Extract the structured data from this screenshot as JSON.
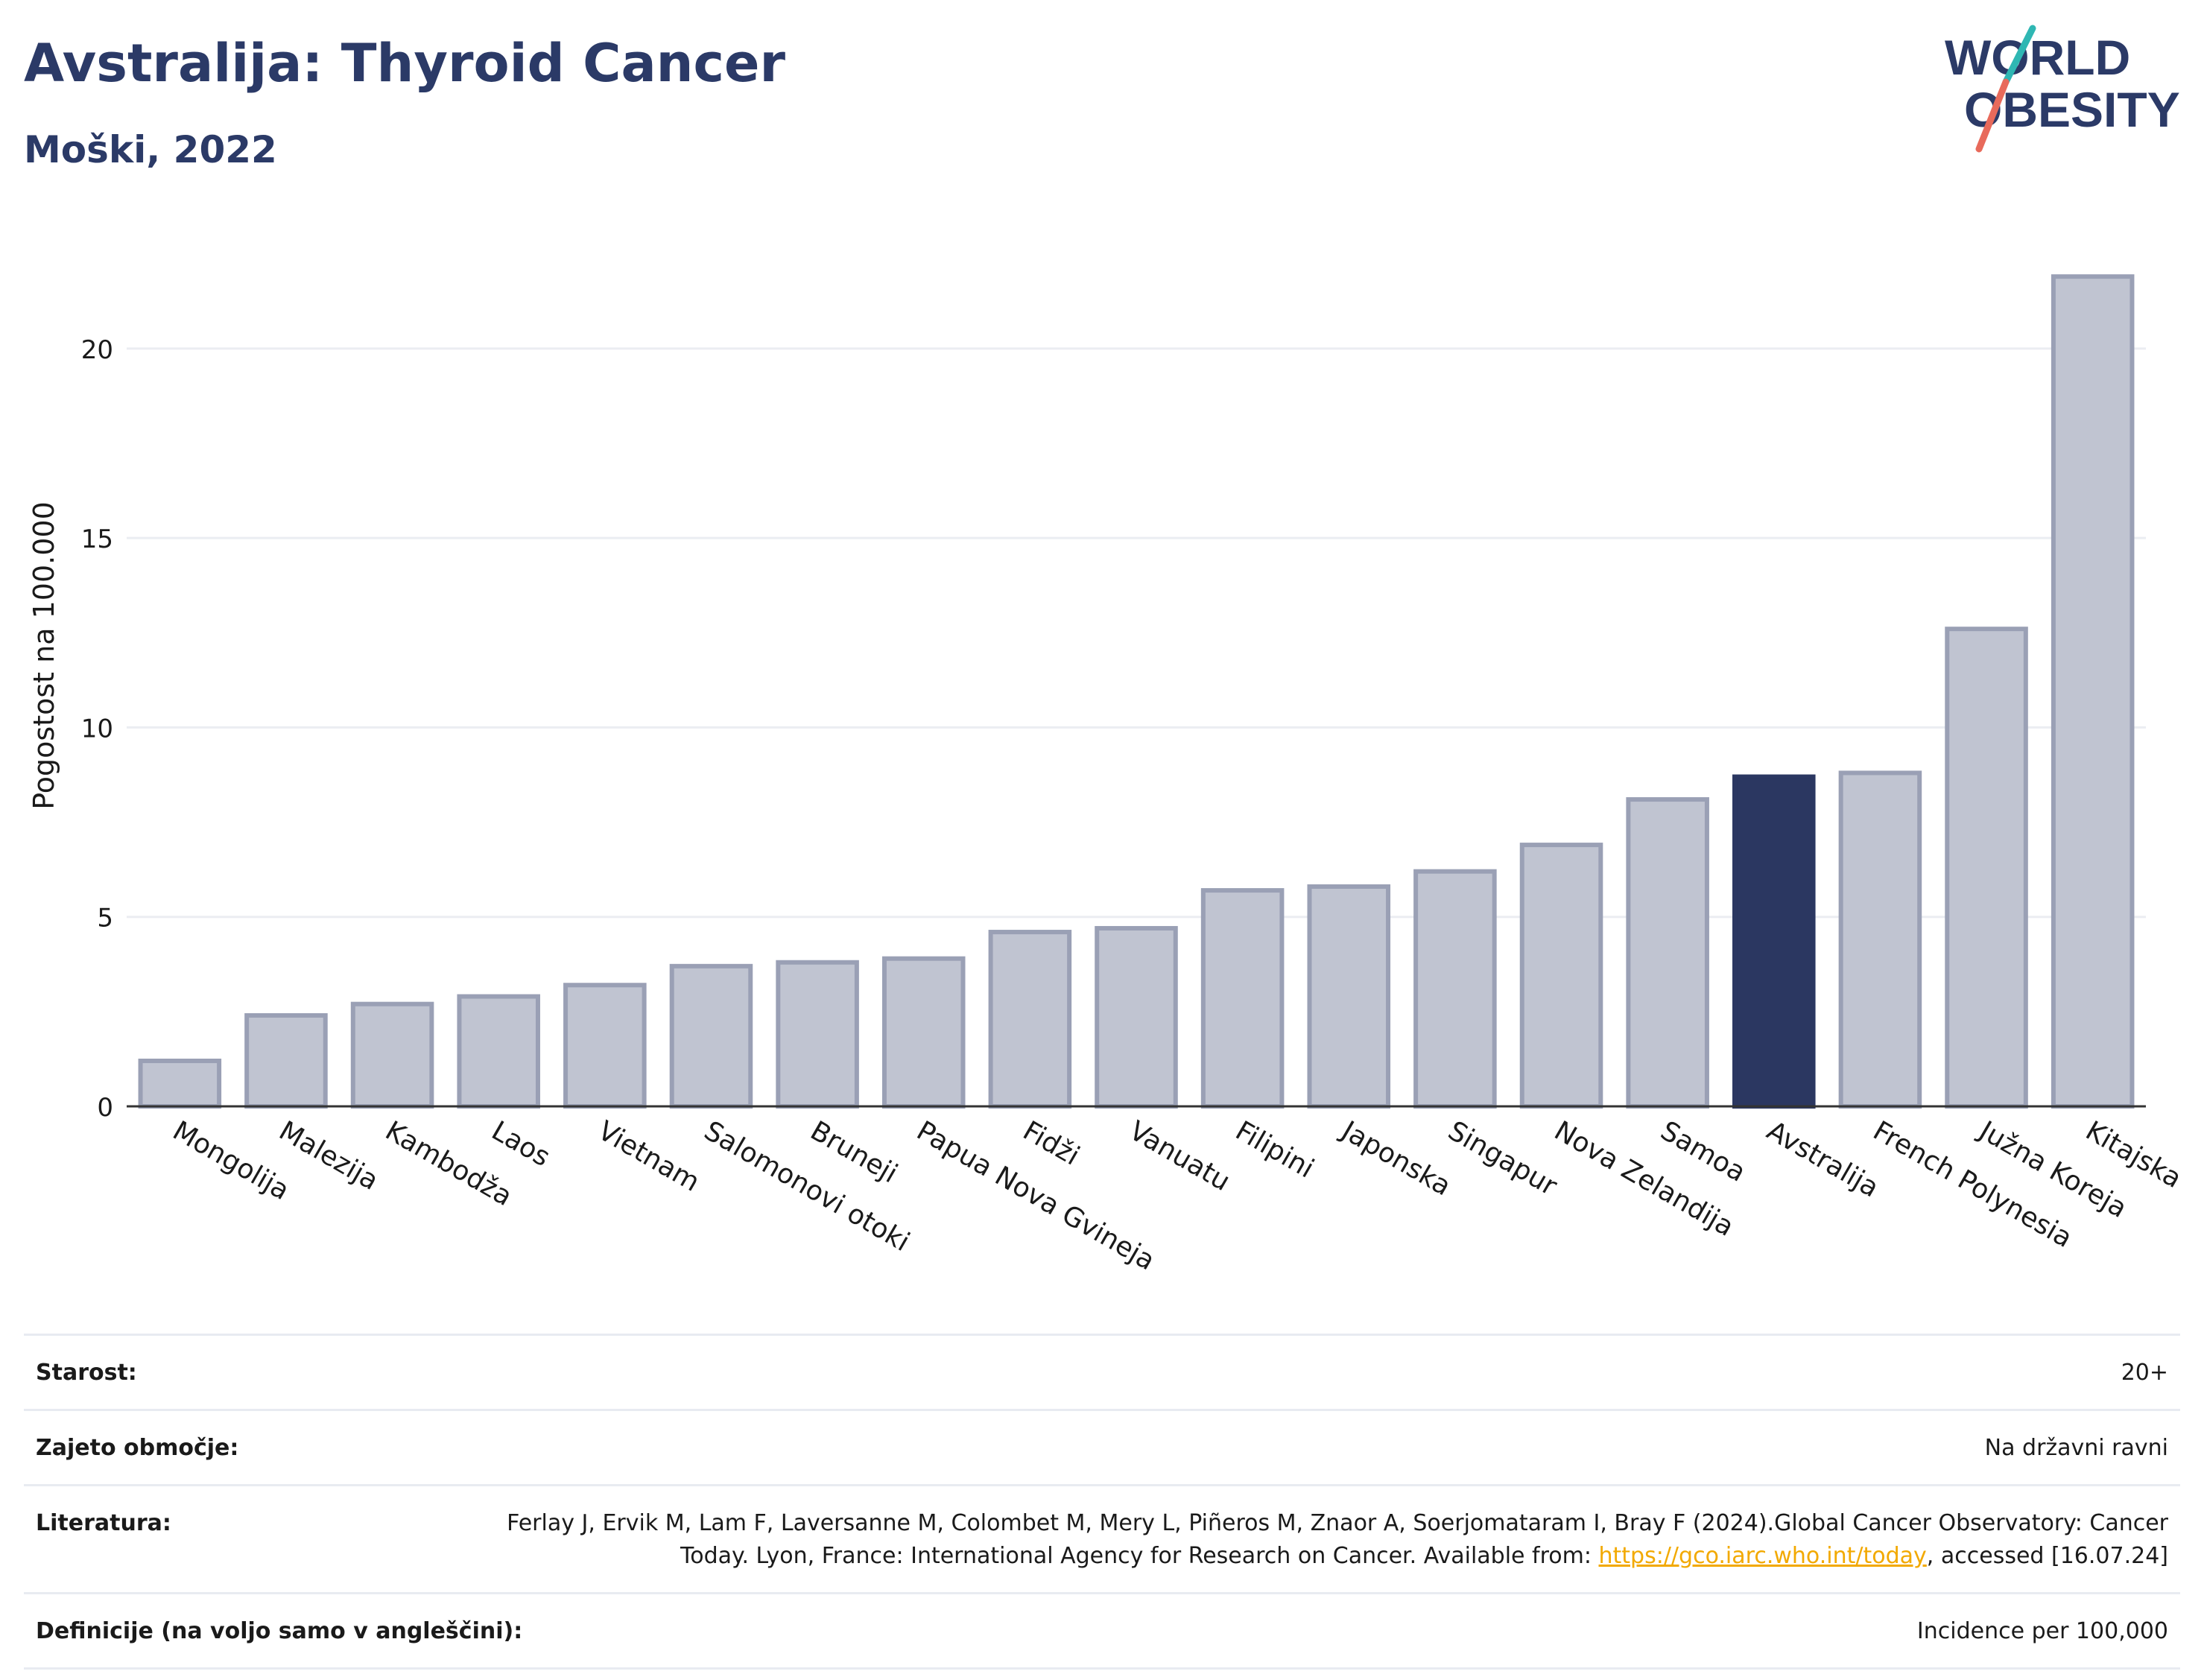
{
  "header": {
    "title": "Avstralija: Thyroid Cancer",
    "subtitle": "Moški, 2022"
  },
  "logo": {
    "line1": "WORLD",
    "line2": "OBESITY"
  },
  "chart_data": {
    "type": "bar",
    "categories": [
      "Mongolija",
      "Malezija",
      "Kambodža",
      "Laos",
      "Vietnam",
      "Salomonovi otoki",
      "Bruneji",
      "Papua Nova Gvineja",
      "Fidži",
      "Vanuatu",
      "Filipini",
      "Japonska",
      "Singapur",
      "Nova Zelandija",
      "Samoa",
      "Avstralija",
      "French Polynesia",
      "Južna Koreja",
      "Kitajska"
    ],
    "values": [
      1.2,
      2.4,
      2.7,
      2.9,
      3.2,
      3.7,
      3.8,
      3.9,
      4.6,
      4.7,
      5.7,
      5.8,
      6.2,
      6.9,
      8.1,
      8.7,
      8.8,
      12.6,
      21.9
    ],
    "highlight": "Avstralija",
    "ylabel": "Pogostost na 100.000",
    "xlabel": "",
    "ylim": [
      0,
      23.3
    ],
    "yticks": [
      0,
      5,
      10,
      15,
      20
    ],
    "grid": true,
    "colors": {
      "bar": "#c0c4d1",
      "bar_border": "#9aa0b5",
      "highlight": "#2b3761",
      "grid": "#ebedf2",
      "axis": "#333333"
    }
  },
  "info": {
    "rows": [
      {
        "label": "Starost:",
        "value": "20+"
      },
      {
        "label": "Zajeto območje:",
        "value": "Na državni ravni"
      },
      {
        "label": "Literatura:",
        "value_pre": "Ferlay J, Ervik M, Lam F, Laversanne M, Colombet M, Mery L, Piñeros M, Znaor A, Soerjomataram I, Bray F (2024).Global Cancer Observatory: Cancer Today. Lyon, France: International Agency for Research on Cancer. Available from: ",
        "link": "https://gco.iarc.who.int/today",
        "value_post": ", accessed [16.07.24]"
      },
      {
        "label": "Definicije (na voljo samo v angleščini):",
        "value": "Incidence per 100,000"
      }
    ]
  }
}
